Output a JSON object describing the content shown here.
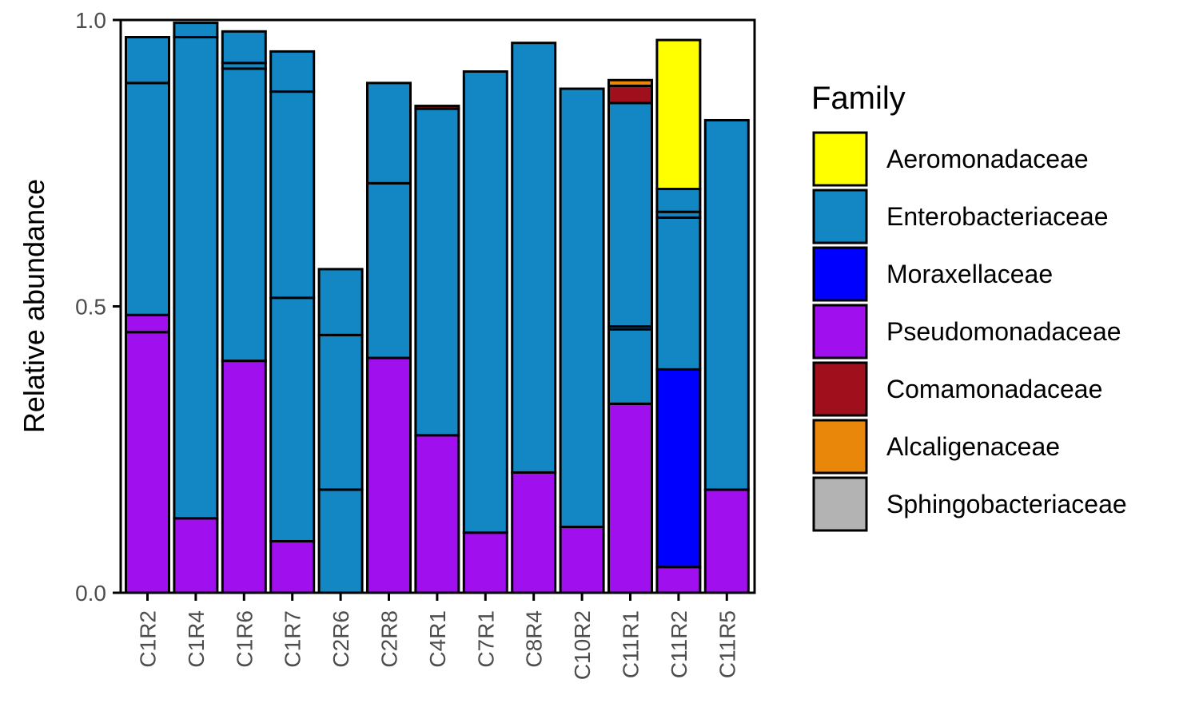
{
  "chart_data": {
    "type": "bar",
    "stacked": true,
    "ylabel": "Relative abundance",
    "xlabel": "",
    "ylim": [
      0,
      1
    ],
    "yticks": [
      0.0,
      0.5,
      1.0
    ],
    "ytick_labels": [
      "0.0",
      "0.5",
      "1.0"
    ],
    "legend_title": "Family",
    "legend_position": "right",
    "categories": [
      "C1R2",
      "C1R4",
      "C1R6",
      "C1R7",
      "C2R6",
      "C2R8",
      "C4R1",
      "C7R1",
      "C8R4",
      "C10R2",
      "C11R1",
      "C11R2",
      "C11R5"
    ],
    "families": [
      {
        "name": "Aeromonadaceae",
        "color": "#FFFF00"
      },
      {
        "name": "Enterobacteriaceae",
        "color": "#1287C4"
      },
      {
        "name": "Moraxellaceae",
        "color": "#0000FF"
      },
      {
        "name": "Pseudomonadaceae",
        "color": "#A010EE"
      },
      {
        "name": "Comamonadaceae",
        "color": "#A0101C"
      },
      {
        "name": "Alcaligenaceae",
        "color": "#E8870A"
      },
      {
        "name": "Sphingobacteriaceae",
        "color": "#B3B3B3"
      }
    ],
    "bars": [
      {
        "category": "C1R2",
        "segments": [
          {
            "family": "Pseudomonadaceae",
            "value": 0.455
          },
          {
            "family": "Pseudomonadaceae",
            "value": 0.03
          },
          {
            "family": "Enterobacteriaceae",
            "value": 0.405
          },
          {
            "family": "Enterobacteriaceae",
            "value": 0.08
          }
        ]
      },
      {
        "category": "C1R4",
        "segments": [
          {
            "family": "Pseudomonadaceae",
            "value": 0.13
          },
          {
            "family": "Enterobacteriaceae",
            "value": 0.84
          },
          {
            "family": "Enterobacteriaceae",
            "value": 0.025
          }
        ]
      },
      {
        "category": "C1R6",
        "segments": [
          {
            "family": "Pseudomonadaceae",
            "value": 0.405
          },
          {
            "family": "Enterobacteriaceae",
            "value": 0.51
          },
          {
            "family": "Enterobacteriaceae",
            "value": 0.01
          },
          {
            "family": "Enterobacteriaceae",
            "value": 0.055
          }
        ]
      },
      {
        "category": "C1R7",
        "segments": [
          {
            "family": "Pseudomonadaceae",
            "value": 0.09
          },
          {
            "family": "Enterobacteriaceae",
            "value": 0.425
          },
          {
            "family": "Enterobacteriaceae",
            "value": 0.36
          },
          {
            "family": "Enterobacteriaceae",
            "value": 0.07
          }
        ]
      },
      {
        "category": "C2R6",
        "segments": [
          {
            "family": "Enterobacteriaceae",
            "value": 0.18
          },
          {
            "family": "Enterobacteriaceae",
            "value": 0.27
          },
          {
            "family": "Enterobacteriaceae",
            "value": 0.115
          }
        ]
      },
      {
        "category": "C2R8",
        "segments": [
          {
            "family": "Pseudomonadaceae",
            "value": 0.41
          },
          {
            "family": "Enterobacteriaceae",
            "value": 0.305
          },
          {
            "family": "Enterobacteriaceae",
            "value": 0.175
          }
        ]
      },
      {
        "category": "C4R1",
        "segments": [
          {
            "family": "Pseudomonadaceae",
            "value": 0.275
          },
          {
            "family": "Enterobacteriaceae",
            "value": 0.57
          },
          {
            "family": "Comamonadaceae",
            "value": 0.005
          }
        ]
      },
      {
        "category": "C7R1",
        "segments": [
          {
            "family": "Pseudomonadaceae",
            "value": 0.105
          },
          {
            "family": "Enterobacteriaceae",
            "value": 0.805
          }
        ]
      },
      {
        "category": "C8R4",
        "segments": [
          {
            "family": "Pseudomonadaceae",
            "value": 0.21
          },
          {
            "family": "Enterobacteriaceae",
            "value": 0.75
          }
        ]
      },
      {
        "category": "C10R2",
        "segments": [
          {
            "family": "Pseudomonadaceae",
            "value": 0.115
          },
          {
            "family": "Enterobacteriaceae",
            "value": 0.765
          }
        ]
      },
      {
        "category": "C11R1",
        "segments": [
          {
            "family": "Pseudomonadaceae",
            "value": 0.33
          },
          {
            "family": "Enterobacteriaceae",
            "value": 0.13
          },
          {
            "family": "Enterobacteriaceae",
            "value": 0.005
          },
          {
            "family": "Enterobacteriaceae",
            "value": 0.39
          },
          {
            "family": "Comamonadaceae",
            "value": 0.03
          },
          {
            "family": "Alcaligenaceae",
            "value": 0.01
          }
        ]
      },
      {
        "category": "C11R2",
        "segments": [
          {
            "family": "Pseudomonadaceae",
            "value": 0.045
          },
          {
            "family": "Moraxellaceae",
            "value": 0.345
          },
          {
            "family": "Enterobacteriaceae",
            "value": 0.265
          },
          {
            "family": "Enterobacteriaceae",
            "value": 0.01
          },
          {
            "family": "Enterobacteriaceae",
            "value": 0.04
          },
          {
            "family": "Aeromonadaceae",
            "value": 0.26
          }
        ]
      },
      {
        "category": "C11R5",
        "segments": [
          {
            "family": "Pseudomonadaceae",
            "value": 0.18
          },
          {
            "family": "Enterobacteriaceae",
            "value": 0.645
          }
        ]
      }
    ]
  }
}
